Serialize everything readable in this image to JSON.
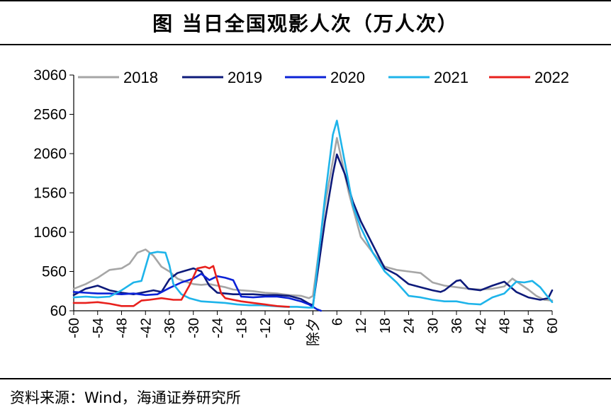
{
  "title": "图  当日全国观影人次（万人次）",
  "source": "资料来源：Wind，海通证券研究所",
  "colors": {
    "2018": "#a6a6a6",
    "2019": "#0d1a7a",
    "2020": "#0b22d6",
    "2021": "#1eb4ea",
    "2022": "#e8201c"
  },
  "chart_data": {
    "type": "line",
    "title": "当日全国观影人次（万人次）",
    "xlabel": "",
    "ylabel": "",
    "ylim": [
      60,
      3060
    ],
    "yticks": [
      "3060",
      "2560",
      "2060",
      "1560",
      "1060",
      "560",
      "60"
    ],
    "xlim": [
      -60,
      60
    ],
    "xticks": [
      "-60",
      "-54",
      "-48",
      "-42",
      "-36",
      "-30",
      "-24",
      "-18",
      "-12",
      "-6",
      "除夕",
      "6",
      "12",
      "18",
      "24",
      "30",
      "36",
      "42",
      "48",
      "54",
      "60"
    ],
    "legend_position": "top",
    "series": [
      {
        "name": "2018",
        "x": [
          -60,
          -57,
          -54,
          -51,
          -48,
          -46,
          -44,
          -42,
          -40,
          -38,
          -36,
          -34,
          -32,
          -30,
          -28,
          -26,
          -24,
          -22,
          -20,
          -18,
          -15,
          -12,
          -9,
          -6,
          -3,
          -1,
          0,
          3,
          6,
          9,
          12,
          15,
          18,
          21,
          24,
          27,
          30,
          33,
          36,
          39,
          42,
          45,
          48,
          50,
          52,
          54,
          56,
          58,
          60
        ],
        "values": [
          340,
          400,
          480,
          580,
          600,
          660,
          800,
          840,
          760,
          620,
          560,
          470,
          430,
          400,
          390,
          400,
          380,
          360,
          330,
          320,
          310,
          290,
          280,
          260,
          250,
          220,
          250,
          1400,
          2260,
          1560,
          1000,
          800,
          620,
          580,
          560,
          540,
          420,
          380,
          360,
          340,
          330,
          340,
          370,
          470,
          400,
          330,
          250,
          200,
          190
        ]
      },
      {
        "name": "2019",
        "x": [
          -60,
          -57,
          -54,
          -51,
          -48,
          -45,
          -42,
          -40,
          -38,
          -36,
          -34,
          -32,
          -30,
          -28,
          -26,
          -24,
          -22,
          -20,
          -18,
          -15,
          -12,
          -9,
          -6,
          -3,
          -1,
          0,
          3,
          5,
          6,
          8,
          10,
          12,
          15,
          18,
          21,
          24,
          27,
          30,
          32,
          33,
          36,
          37,
          39,
          42,
          45,
          48,
          51,
          54,
          57,
          59,
          60
        ],
        "values": [
          260,
          340,
          380,
          320,
          290,
          270,
          300,
          320,
          300,
          460,
          540,
          570,
          600,
          560,
          380,
          290,
          280,
          270,
          270,
          270,
          260,
          260,
          250,
          210,
          150,
          130,
          1200,
          1800,
          2050,
          1800,
          1450,
          1200,
          900,
          600,
          520,
          400,
          360,
          320,
          300,
          320,
          440,
          450,
          340,
          320,
          380,
          430,
          300,
          230,
          200,
          220,
          320
        ]
      },
      {
        "name": "2020",
        "x": [
          -60,
          -57,
          -54,
          -51,
          -48,
          -45,
          -42,
          -39,
          -36,
          -33,
          -30,
          -28,
          -26,
          -24,
          -22,
          -20,
          -18,
          -15,
          -12,
          -9,
          -6,
          -3,
          -1,
          0,
          1,
          2
        ],
        "values": [
          300,
          290,
          280,
          280,
          270,
          280,
          260,
          270,
          350,
          420,
          470,
          530,
          450,
          500,
          480,
          450,
          240,
          230,
          240,
          240,
          220,
          180,
          140,
          110,
          80,
          60
        ]
      },
      {
        "name": "2021",
        "x": [
          -60,
          -57,
          -54,
          -51,
          -48,
          -45,
          -43,
          -41,
          -39,
          -37,
          -36,
          -35,
          -33,
          -31,
          -28,
          -25,
          -22,
          -19,
          -16,
          -13,
          -10,
          -7,
          -4,
          -1,
          0,
          3,
          5,
          6,
          8,
          10,
          12,
          15,
          18,
          21,
          24,
          27,
          30,
          33,
          36,
          39,
          42,
          45,
          48,
          51,
          53,
          55,
          57,
          59,
          60
        ],
        "values": [
          230,
          240,
          230,
          240,
          320,
          420,
          440,
          790,
          810,
          800,
          640,
          400,
          270,
          220,
          180,
          170,
          160,
          140,
          130,
          130,
          120,
          110,
          110,
          100,
          100,
          1500,
          2300,
          2480,
          1950,
          1400,
          1120,
          800,
          560,
          420,
          250,
          230,
          200,
          180,
          180,
          150,
          140,
          230,
          280,
          430,
          420,
          440,
          360,
          230,
          170
        ]
      },
      {
        "name": "2022",
        "x": [
          -60,
          -57,
          -54,
          -51,
          -48,
          -45,
          -43,
          -41,
          -38,
          -35,
          -33,
          -31,
          -29,
          -27,
          -26,
          -25,
          -24,
          -23,
          -22,
          -20,
          -18,
          -15,
          -12,
          -9,
          -6
        ],
        "values": [
          160,
          160,
          170,
          150,
          120,
          120,
          190,
          200,
          220,
          200,
          200,
          380,
          600,
          620,
          600,
          630,
          450,
          280,
          220,
          200,
          180,
          160,
          140,
          120,
          110
        ]
      }
    ]
  }
}
